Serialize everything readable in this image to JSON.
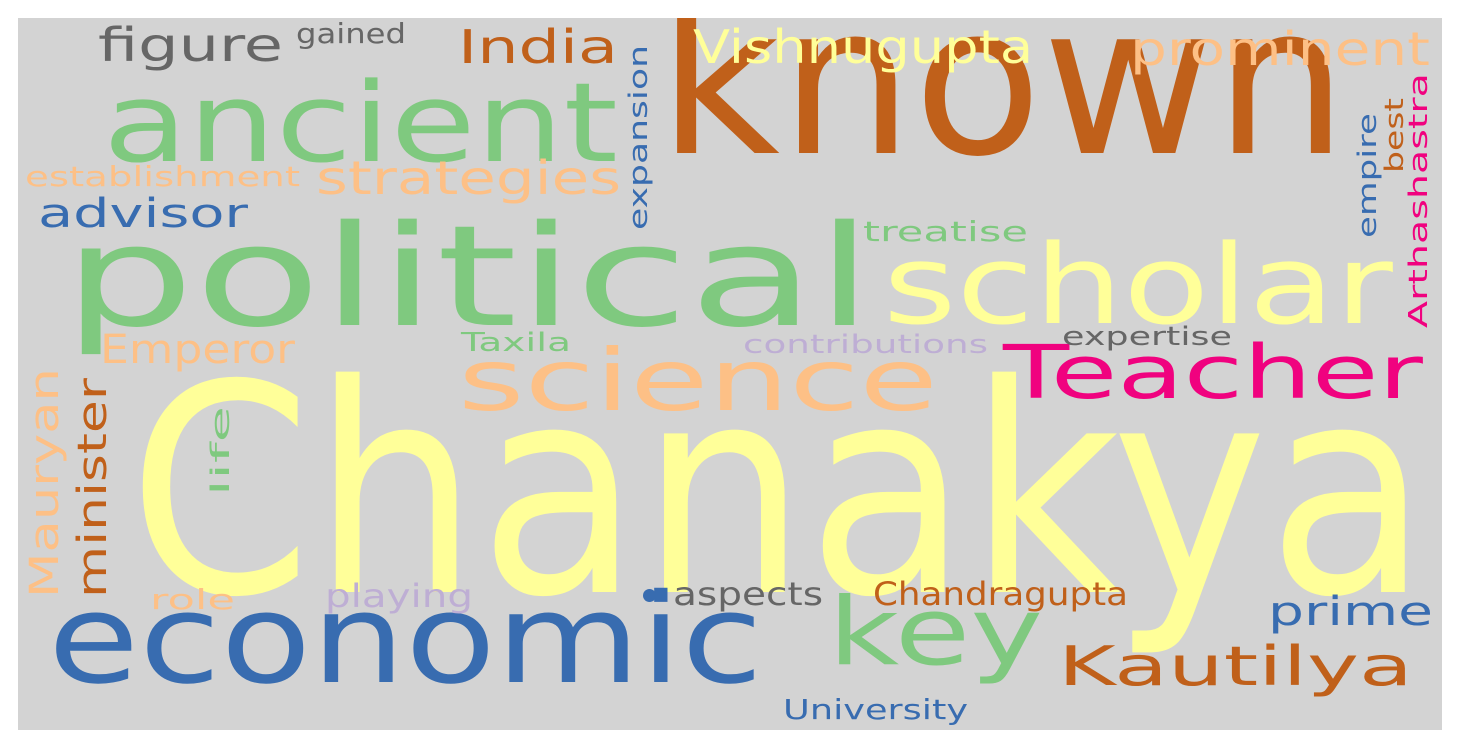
{
  "wordcloud": {
    "background": "#d3d3d3",
    "palette": {
      "green": "#7fc97f",
      "yellow": "#ffff99",
      "orange_dark": "#c0601a",
      "peach": "#fdc086",
      "blue": "#386cb0",
      "pink": "#f0027f",
      "grey": "#666666",
      "lavender": "#beaed4"
    },
    "words": [
      {
        "text": "Chanakya",
        "color": "#ffff99",
        "orientation": "horizontal"
      },
      {
        "text": "known",
        "color": "#c0601a",
        "orientation": "horizontal"
      },
      {
        "text": "political",
        "color": "#7fc97f",
        "orientation": "horizontal"
      },
      {
        "text": "economic",
        "color": "#386cb0",
        "orientation": "horizontal"
      },
      {
        "text": "ancient",
        "color": "#7fc97f",
        "orientation": "horizontal"
      },
      {
        "text": "scholar",
        "color": "#ffff99",
        "orientation": "horizontal"
      },
      {
        "text": "science",
        "color": "#fdc086",
        "orientation": "horizontal"
      },
      {
        "text": "Teacher",
        "color": "#f0027f",
        "orientation": "horizontal"
      },
      {
        "text": "key",
        "color": "#7fc97f",
        "orientation": "horizontal"
      },
      {
        "text": "Kautilya",
        "color": "#c0601a",
        "orientation": "horizontal"
      },
      {
        "text": "Vishnugupta",
        "color": "#ffff99",
        "orientation": "horizontal"
      },
      {
        "text": "prominent",
        "color": "#fdc086",
        "orientation": "horizontal"
      },
      {
        "text": "India",
        "color": "#c0601a",
        "orientation": "horizontal"
      },
      {
        "text": "figure",
        "color": "#666666",
        "orientation": "horizontal"
      },
      {
        "text": "gained",
        "color": "#666666",
        "orientation": "horizontal"
      },
      {
        "text": "strategies",
        "color": "#fdc086",
        "orientation": "horizontal"
      },
      {
        "text": "establishment",
        "color": "#fdc086",
        "orientation": "horizontal"
      },
      {
        "text": "advisor",
        "color": "#386cb0",
        "orientation": "horizontal"
      },
      {
        "text": "Emperor",
        "color": "#fdc086",
        "orientation": "horizontal"
      },
      {
        "text": "Taxila",
        "color": "#7fc97f",
        "orientation": "horizontal"
      },
      {
        "text": "contributions",
        "color": "#beaed4",
        "orientation": "horizontal"
      },
      {
        "text": "expertise",
        "color": "#666666",
        "orientation": "horizontal"
      },
      {
        "text": "treatise",
        "color": "#7fc97f",
        "orientation": "horizontal"
      },
      {
        "text": "prime",
        "color": "#386cb0",
        "orientation": "horizontal"
      },
      {
        "text": "Chandragupta",
        "color": "#c0601a",
        "orientation": "horizontal"
      },
      {
        "text": "aspects",
        "color": "#666666",
        "orientation": "horizontal"
      },
      {
        "text": "playing",
        "color": "#beaed4",
        "orientation": "horizontal"
      },
      {
        "text": "role",
        "color": "#fdc086",
        "orientation": "horizontal"
      },
      {
        "text": "University",
        "color": "#386cb0",
        "orientation": "horizontal"
      },
      {
        "text": "minister",
        "color": "#c0601a",
        "orientation": "vertical"
      },
      {
        "text": "Mauryan",
        "color": "#fdc086",
        "orientation": "vertical"
      },
      {
        "text": "life",
        "color": "#7fc97f",
        "orientation": "vertical"
      },
      {
        "text": "expansion",
        "color": "#386cb0",
        "orientation": "vertical"
      },
      {
        "text": "empire",
        "color": "#386cb0",
        "orientation": "vertical"
      },
      {
        "text": "best",
        "color": "#c0601a",
        "orientation": "vertical"
      },
      {
        "text": "Arthashastra",
        "color": "#f0027f",
        "orientation": "vertical"
      },
      {
        "text": "",
        "color": "#386cb0",
        "orientation": "dot"
      }
    ]
  }
}
